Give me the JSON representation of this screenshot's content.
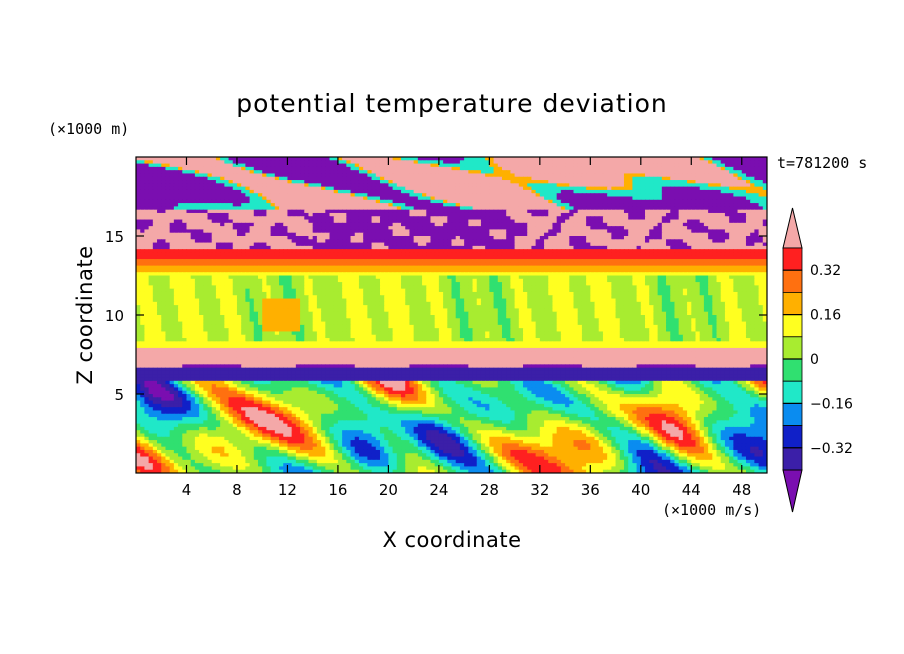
{
  "chart_data": {
    "type": "heatmap",
    "title": "potential temperature deviation",
    "xlabel": "X coordinate",
    "ylabel": "Z coordinate",
    "x_unit": "(×1000 m/s)",
    "y_unit": "(×1000 m)",
    "time_label": "t=781200 s",
    "xlim": [
      0,
      50
    ],
    "ylim": [
      0,
      20
    ],
    "x_ticks": [
      4,
      8,
      12,
      16,
      20,
      24,
      28,
      32,
      36,
      40,
      44,
      48
    ],
    "y_ticks": [
      5,
      10,
      15
    ],
    "colorbar": {
      "labels": [
        "0.32",
        "0.16",
        "0",
        "−0.16",
        "−0.32"
      ],
      "levels": [
        -0.4,
        -0.32,
        -0.24,
        -0.16,
        -0.08,
        0,
        0.08,
        0.16,
        0.24,
        0.32,
        0.4
      ],
      "colors": [
        "#7a0eb0",
        "#3b1fa8",
        "#1020c8",
        "#0a8cf0",
        "#20e8c8",
        "#30e070",
        "#a8ec30",
        "#ffff20",
        "#ffb000",
        "#ff7010",
        "#ff2020",
        "#f4a8a8"
      ]
    },
    "layers": [
      {
        "z_range": [
          16.5,
          20
        ],
        "description_value": "mixed high/low",
        "values": [
          0.4,
          -0.4
        ]
      },
      {
        "z_range": [
          14,
          16.5
        ],
        "values": [
          0.4,
          -0.4
        ]
      },
      {
        "z_range": [
          13.2,
          14
        ],
        "values": [
          0.32
        ]
      },
      {
        "z_range": [
          8,
          13
        ],
        "values": [
          0.05
        ]
      },
      {
        "z_range": [
          6.5,
          8
        ],
        "values": [
          0.4
        ]
      },
      {
        "z_range": [
          0,
          6.5
        ],
        "values": [
          -0.4,
          0.4
        ]
      }
    ]
  }
}
